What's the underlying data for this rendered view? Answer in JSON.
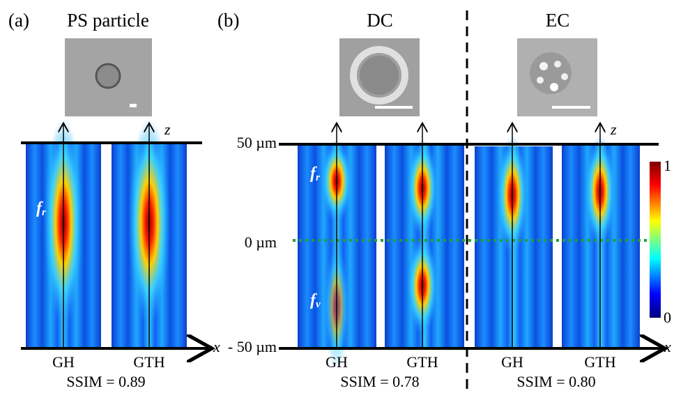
{
  "panel_a": {
    "label": "(a)",
    "title": "PS particle",
    "axis_z": "z",
    "axis_x": "x",
    "focus_label": {
      "base": "f",
      "sub": "r"
    },
    "images": [
      {
        "label": "GH"
      },
      {
        "label": "GTH"
      }
    ],
    "ssim": "SSIM = 0.89"
  },
  "panel_b": {
    "label": "(b)",
    "axis_z": "z",
    "axis_x": "x",
    "z_ticks": [
      "50 µm",
      "0 µm",
      "- 50 µm"
    ],
    "focus_labels": [
      {
        "base": "f",
        "sub": "r"
      },
      {
        "base": "f",
        "sub": "v"
      }
    ],
    "groups": [
      {
        "title": "DC",
        "images": [
          {
            "label": "GH"
          },
          {
            "label": "GTH"
          }
        ],
        "ssim": "SSIM = 0.78"
      },
      {
        "title": "EC",
        "images": [
          {
            "label": "GH"
          },
          {
            "label": "GTH"
          }
        ],
        "ssim": "SSIM = 0.80"
      }
    ],
    "colorbar": {
      "max": 1,
      "min": 0
    }
  }
}
